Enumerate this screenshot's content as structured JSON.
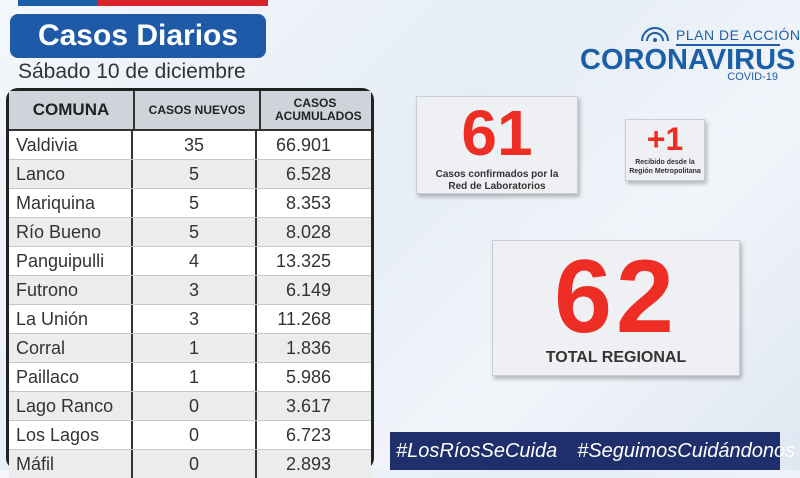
{
  "header": {
    "title": "Casos Diarios",
    "date": "Sábado 10 de diciembre"
  },
  "table": {
    "columns": [
      "COMUNA",
      "CASOS NUEVOS",
      "CASOS ACUMULADOS"
    ],
    "rows": [
      {
        "comuna": "Valdivia",
        "nuevos": "35",
        "acumulados": "66.901"
      },
      {
        "comuna": "Lanco",
        "nuevos": "5",
        "acumulados": "6.528"
      },
      {
        "comuna": "Mariquina",
        "nuevos": "5",
        "acumulados": "8.353"
      },
      {
        "comuna": "Río Bueno",
        "nuevos": "5",
        "acumulados": "8.028"
      },
      {
        "comuna": "Panguipulli",
        "nuevos": "4",
        "acumulados": "13.325"
      },
      {
        "comuna": "Futrono",
        "nuevos": "3",
        "acumulados": "6.149"
      },
      {
        "comuna": "La Unión",
        "nuevos": "3",
        "acumulados": "11.268"
      },
      {
        "comuna": "Corral",
        "nuevos": "1",
        "acumulados": "1.836"
      },
      {
        "comuna": "Paillaco",
        "nuevos": "1",
        "acumulados": "5.986"
      },
      {
        "comuna": "Lago Ranco",
        "nuevos": "0",
        "acumulados": "3.617"
      },
      {
        "comuna": "Los Lagos",
        "nuevos": "0",
        "acumulados": "6.723"
      },
      {
        "comuna": "Máfil",
        "nuevos": "0",
        "acumulados": "2.893"
      }
    ]
  },
  "logo": {
    "plan": "PLAN DE ACCIÓN",
    "name": "CORONAVIRUS",
    "sub": "COVID-19",
    "icon": "government-emblem-icon"
  },
  "cards": {
    "confirmed": {
      "value": "61",
      "label_line1": "Casos confirmados por la",
      "label_line2": "Red de Laboratorios"
    },
    "rm": {
      "value": "+1",
      "label_line1": "Recibido desde la",
      "label_line2": "Región Metropolitana"
    },
    "total": {
      "value": "62",
      "label": "TOTAL REGIONAL"
    }
  },
  "hashtags": [
    "#LosRíosSeCuida",
    "#SeguimosCuidándonos"
  ],
  "colors": {
    "brand_blue": "#1e5aa8",
    "accent_red": "#ee2e24",
    "hashtag_bar": "#1e2f6b"
  }
}
